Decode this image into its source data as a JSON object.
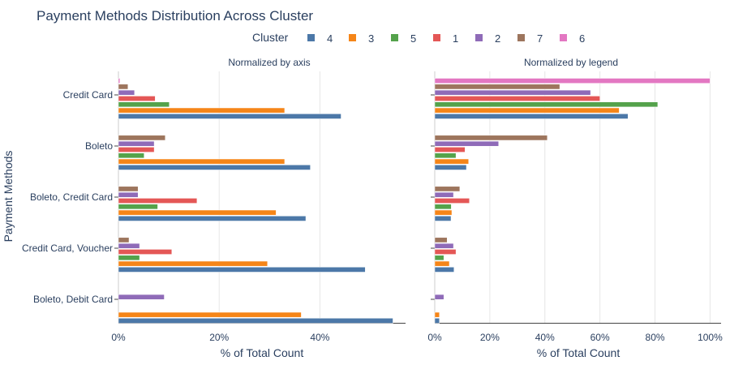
{
  "chart_data": {
    "type": "bar",
    "orientation": "horizontal",
    "title": "Payment Methods Distribution Across Cluster",
    "ylabel": "Payment Methods",
    "legend": {
      "title": "Cluster",
      "placement": "top-center",
      "entries": [
        {
          "name": "4",
          "color": "#4c78a8"
        },
        {
          "name": "3",
          "color": "#f58518"
        },
        {
          "name": "5",
          "color": "#54a24b"
        },
        {
          "name": "1",
          "color": "#e45756"
        },
        {
          "name": "2",
          "color": "#8f6bb8"
        },
        {
          "name": "7",
          "color": "#9d755d"
        },
        {
          "name": "6",
          "color": "#e377c2"
        }
      ]
    },
    "categories": [
      "Credit Card",
      "Boleto",
      "Boleto, Credit Card",
      "Credit Card, Voucher",
      "Boleto, Debit Card"
    ],
    "panels": [
      {
        "subtitle": "Normalized by axis",
        "xlabel": "% of Total Count",
        "xlim": [
          0,
          57
        ],
        "ticks": [
          0,
          20,
          40
        ],
        "tick_labels": [
          "0%",
          "20%",
          "40%"
        ],
        "series": [
          {
            "name": "4",
            "values": [
              44.2,
              38.1,
              37.2,
              49.0,
              54.5
            ]
          },
          {
            "name": "3",
            "values": [
              33.0,
              33.0,
              31.3,
              29.6,
              36.3
            ]
          },
          {
            "name": "5",
            "values": [
              10.1,
              5.1,
              7.8,
              4.2,
              0
            ]
          },
          {
            "name": "1",
            "values": [
              7.3,
              7.1,
              15.6,
              10.6,
              0
            ]
          },
          {
            "name": "2",
            "values": [
              3.2,
              7.1,
              3.9,
              4.2,
              9.1
            ]
          },
          {
            "name": "7",
            "values": [
              1.9,
              9.3,
              3.9,
              2.1,
              0
            ]
          },
          {
            "name": "6",
            "values": [
              0.3,
              0,
              0,
              0,
              0
            ]
          }
        ]
      },
      {
        "subtitle": "Normalized by legend",
        "xlabel": "% of Total Count",
        "xlim": [
          0,
          104
        ],
        "ticks": [
          0,
          20,
          40,
          60,
          80,
          100
        ],
        "tick_labels": [
          "0%",
          "20%",
          "40%",
          "60%",
          "80%",
          "100%"
        ],
        "series": [
          {
            "name": "4",
            "values": [
              70.2,
              11.5,
              5.9,
              7.0,
              1.7
            ]
          },
          {
            "name": "3",
            "values": [
              67.0,
              12.3,
              6.2,
              5.3,
              1.7
            ]
          },
          {
            "name": "5",
            "values": [
              81.0,
              7.7,
              6.0,
              3.3,
              0
            ]
          },
          {
            "name": "1",
            "values": [
              60.0,
              11.0,
              12.6,
              7.7,
              0
            ]
          },
          {
            "name": "2",
            "values": [
              56.6,
              23.2,
              6.8,
              6.8,
              3.3
            ]
          },
          {
            "name": "7",
            "values": [
              45.4,
              40.9,
              9.1,
              4.5,
              0
            ]
          },
          {
            "name": "6",
            "values": [
              100.0,
              0,
              0,
              0,
              0
            ]
          }
        ]
      }
    ]
  }
}
